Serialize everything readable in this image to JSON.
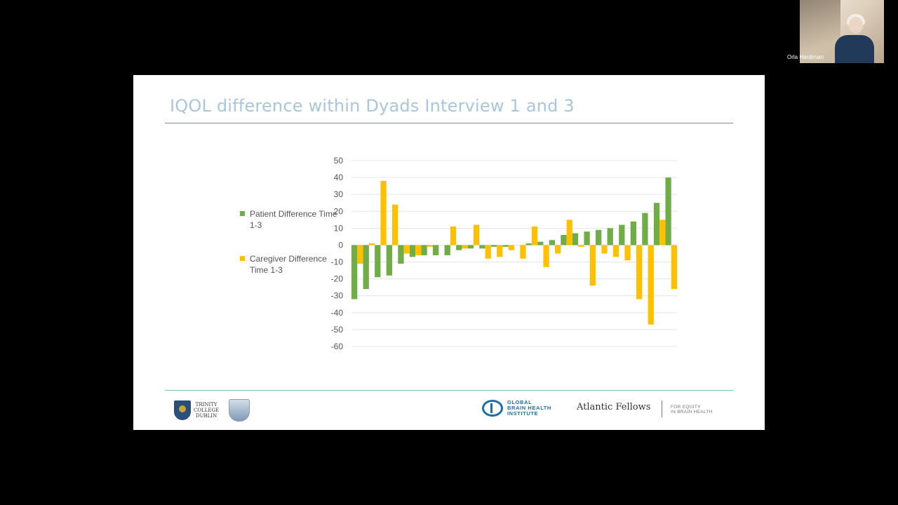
{
  "slide": {
    "title": "IQOL difference within Dyads Interview 1 and 3"
  },
  "footer": {
    "tcd_line1": "TRINITY",
    "tcd_line2": "COLLEGE",
    "tcd_line3": "DUBLIN",
    "gbhi_line1": "GLOBAL",
    "gbhi_line2": "BRAIN HEALTH",
    "gbhi_line3": "INSTITUTE",
    "atlantic": "Atlantic Fellows",
    "equity_line1": "FOR EQUITY",
    "equity_line2": "IN BRAIN HEALTH"
  },
  "video": {
    "participant_name": "Orla Hardiman"
  },
  "chart_data": {
    "type": "bar",
    "title": "IQOL difference within Dyads Interview 1 and 3",
    "xlabel": "",
    "ylabel": "",
    "ylim": [
      -60,
      50
    ],
    "yticks": [
      50,
      40,
      30,
      20,
      10,
      0,
      -10,
      -20,
      -30,
      -40,
      -50,
      -60
    ],
    "grid": true,
    "legend_position": "left",
    "series": [
      {
        "name": "Patient Difference Time 1-3",
        "color": "#70ad47",
        "values": [
          -32,
          -26,
          -19,
          -18,
          -11,
          -7,
          -6,
          -6,
          -6,
          -3,
          -2,
          -2,
          -1,
          -1,
          0,
          1,
          2,
          3,
          6,
          7,
          8,
          9,
          10,
          12,
          14,
          19,
          25,
          40
        ]
      },
      {
        "name": "Caregiver Difference Time 1-3",
        "color": "#ffc000",
        "values": [
          -11,
          1,
          38,
          24,
          -5,
          -6,
          -1,
          0,
          11,
          -2,
          12,
          -8,
          -7,
          -3,
          -8,
          11,
          -13,
          -5,
          15,
          -1,
          -24,
          -5,
          -7,
          -9,
          -32,
          -47,
          15,
          -26
        ]
      }
    ]
  }
}
